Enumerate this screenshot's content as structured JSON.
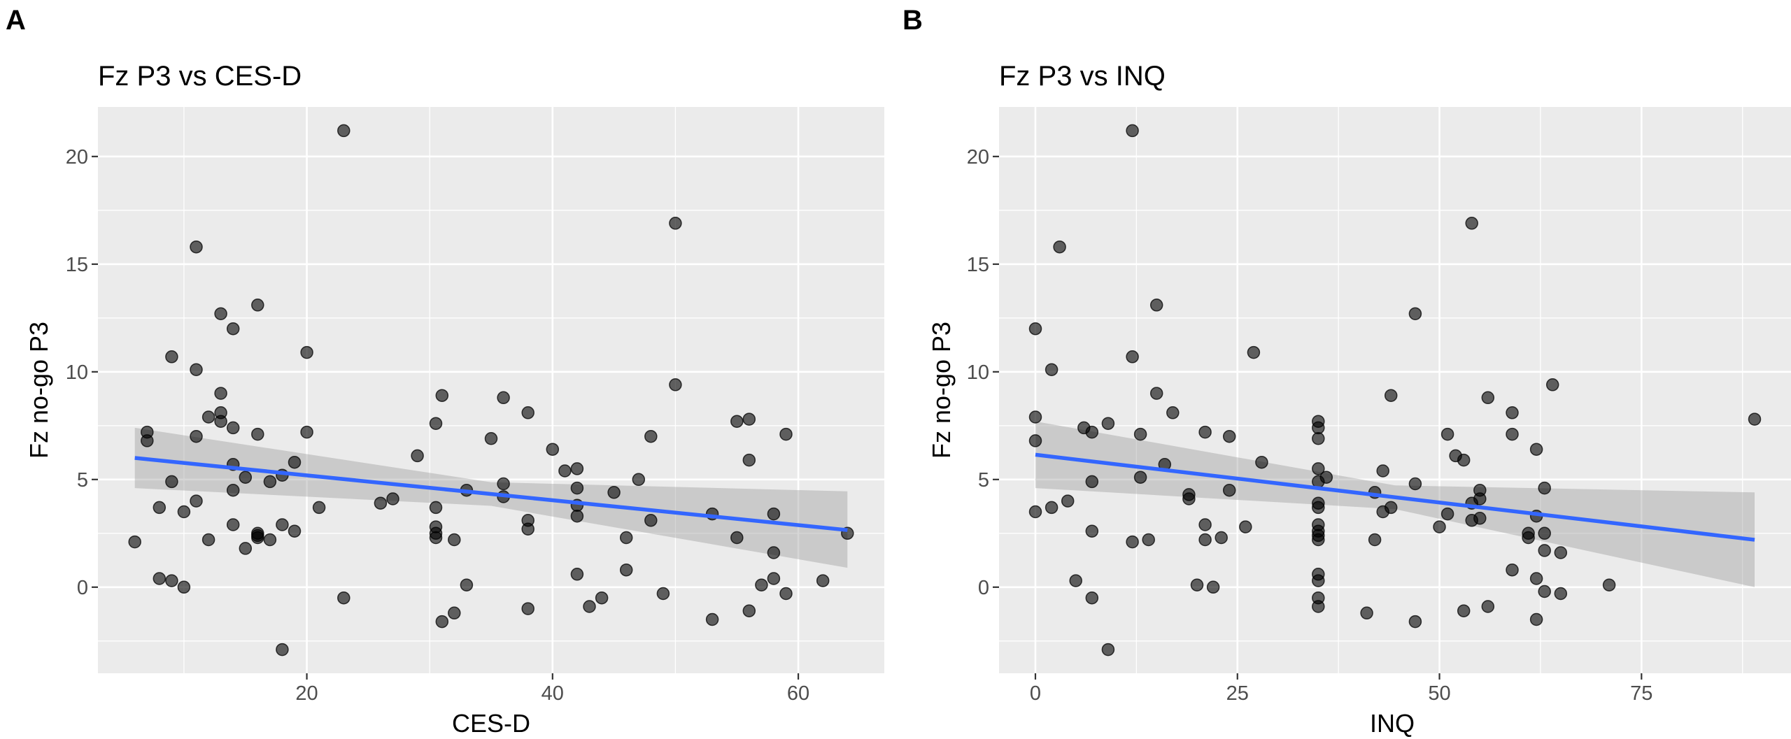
{
  "chart_data": [
    {
      "panel_label": "A",
      "type": "scatter",
      "title": "Fz P3 vs CES-D",
      "xlabel": "CES-D",
      "ylabel": "Fz no-go P3",
      "xlim": [
        3,
        67
      ],
      "ylim": [
        -4,
        22.3
      ],
      "x_ticks": [
        20,
        40,
        60
      ],
      "y_ticks": [
        0,
        5,
        10,
        15,
        20
      ],
      "fit": {
        "method": "lm",
        "x_start": 6,
        "x_end": 64,
        "y_start": 6.0,
        "y_end": 2.65,
        "ci_start": [
          4.6,
          7.4
        ],
        "ci_end": [
          0.9,
          4.45
        ]
      },
      "points": [
        [
          6,
          2.1
        ],
        [
          7,
          6.8
        ],
        [
          7,
          7.2
        ],
        [
          8,
          0.4
        ],
        [
          8,
          3.7
        ],
        [
          9,
          0.3
        ],
        [
          9,
          4.9
        ],
        [
          9,
          10.7
        ],
        [
          10,
          0
        ],
        [
          10,
          3.5
        ],
        [
          11,
          4
        ],
        [
          11,
          7
        ],
        [
          11,
          10.1
        ],
        [
          11,
          15.8
        ],
        [
          12,
          2.2
        ],
        [
          12,
          7.9
        ],
        [
          13,
          7.7
        ],
        [
          13,
          8.1
        ],
        [
          13,
          9
        ],
        [
          13,
          12.7
        ],
        [
          14,
          2.9
        ],
        [
          14,
          4.5
        ],
        [
          14,
          5.7
        ],
        [
          14,
          7.4
        ],
        [
          14,
          12
        ],
        [
          15,
          1.8
        ],
        [
          15,
          5.1
        ],
        [
          16,
          2.3
        ],
        [
          16,
          2.4
        ],
        [
          16,
          2.5
        ],
        [
          16,
          7.1
        ],
        [
          16,
          13.1
        ],
        [
          17,
          2.2
        ],
        [
          17,
          4.9
        ],
        [
          18,
          -2.9
        ],
        [
          18,
          2.9
        ],
        [
          18,
          5.2
        ],
        [
          19,
          2.6
        ],
        [
          19,
          5.8
        ],
        [
          20,
          7.2
        ],
        [
          20,
          10.9
        ],
        [
          21,
          3.7
        ],
        [
          23,
          -0.5
        ],
        [
          23,
          21.2
        ],
        [
          26,
          3.9
        ],
        [
          27,
          4.1
        ],
        [
          29,
          6.1
        ],
        [
          30.5,
          2.3
        ],
        [
          30.5,
          2.5
        ],
        [
          30.5,
          2.8
        ],
        [
          30.5,
          3.7
        ],
        [
          30.5,
          7.6
        ],
        [
          31,
          -1.6
        ],
        [
          31,
          8.9
        ],
        [
          32,
          -1.2
        ],
        [
          32,
          2.2
        ],
        [
          33,
          0.1
        ],
        [
          33,
          4.5
        ],
        [
          35,
          6.9
        ],
        [
          36,
          4.2
        ],
        [
          36,
          4.8
        ],
        [
          36,
          8.8
        ],
        [
          38,
          -1
        ],
        [
          38,
          2.7
        ],
        [
          38,
          3.1
        ],
        [
          38,
          8.1
        ],
        [
          40,
          6.4
        ],
        [
          41,
          5.4
        ],
        [
          42,
          0.6
        ],
        [
          42,
          3.3
        ],
        [
          42,
          3.8
        ],
        [
          42,
          4.6
        ],
        [
          42,
          5.5
        ],
        [
          43,
          -0.9
        ],
        [
          44,
          -0.5
        ],
        [
          45,
          4.4
        ],
        [
          46,
          0.8
        ],
        [
          46,
          2.3
        ],
        [
          47,
          5
        ],
        [
          48,
          3.1
        ],
        [
          48,
          7
        ],
        [
          49,
          -0.3
        ],
        [
          50,
          9.4
        ],
        [
          50,
          16.9
        ],
        [
          53,
          -1.5
        ],
        [
          53,
          3.4
        ],
        [
          55,
          2.3
        ],
        [
          55,
          7.7
        ],
        [
          56,
          -1.1
        ],
        [
          56,
          5.9
        ],
        [
          56,
          7.8
        ],
        [
          57,
          0.1
        ],
        [
          58,
          0.4
        ],
        [
          58,
          1.6
        ],
        [
          58,
          3.4
        ],
        [
          59,
          -0.3
        ],
        [
          59,
          7.1
        ],
        [
          62,
          0.3
        ],
        [
          64,
          2.5
        ]
      ]
    },
    {
      "panel_label": "B",
      "type": "scatter",
      "title": "Fz P3 vs INQ",
      "xlabel": "INQ",
      "ylabel": "Fz no-go P3",
      "xlim": [
        -4.5,
        93.5
      ],
      "ylim": [
        -4,
        22.3
      ],
      "x_ticks": [
        0,
        25,
        50,
        75
      ],
      "y_ticks": [
        0,
        5,
        10,
        15,
        20
      ],
      "fit": {
        "method": "lm",
        "x_start": 0,
        "x_end": 89,
        "y_start": 6.15,
        "y_end": 2.2,
        "ci_start": [
          4.6,
          7.7
        ],
        "ci_end": [
          0,
          4.4
        ]
      },
      "points": [
        [
          0,
          3.5
        ],
        [
          0,
          6.8
        ],
        [
          0,
          7.9
        ],
        [
          0,
          12
        ],
        [
          2,
          3.7
        ],
        [
          2,
          10.1
        ],
        [
          3,
          15.8
        ],
        [
          4,
          4
        ],
        [
          5,
          0.3
        ],
        [
          6,
          7.4
        ],
        [
          7,
          -0.5
        ],
        [
          7,
          2.6
        ],
        [
          7,
          4.9
        ],
        [
          7,
          7.2
        ],
        [
          9,
          -2.9
        ],
        [
          9,
          7.6
        ],
        [
          12,
          2.1
        ],
        [
          12,
          10.7
        ],
        [
          12,
          21.2
        ],
        [
          13,
          5.1
        ],
        [
          13,
          7.1
        ],
        [
          14,
          2.2
        ],
        [
          15,
          9
        ],
        [
          15,
          13.1
        ],
        [
          16,
          5.7
        ],
        [
          17,
          8.1
        ],
        [
          19,
          4.1
        ],
        [
          19,
          4.3
        ],
        [
          20,
          0.1
        ],
        [
          21,
          2.2
        ],
        [
          21,
          2.9
        ],
        [
          21,
          7.2
        ],
        [
          22,
          0
        ],
        [
          23,
          2.3
        ],
        [
          24,
          4.5
        ],
        [
          24,
          7
        ],
        [
          26,
          2.8
        ],
        [
          27,
          10.9
        ],
        [
          28,
          5.8
        ],
        [
          35,
          -0.9
        ],
        [
          35,
          -0.5
        ],
        [
          35,
          0.3
        ],
        [
          35,
          0.6
        ],
        [
          35,
          2.2
        ],
        [
          35,
          2.4
        ],
        [
          35,
          2.6
        ],
        [
          35,
          2.9
        ],
        [
          35,
          3.7
        ],
        [
          35,
          3.9
        ],
        [
          35,
          4.9
        ],
        [
          35,
          5.5
        ],
        [
          35,
          6.9
        ],
        [
          35,
          7.4
        ],
        [
          35,
          7.7
        ],
        [
          36,
          5.1
        ],
        [
          41,
          -1.2
        ],
        [
          42,
          2.2
        ],
        [
          42,
          4.4
        ],
        [
          43,
          3.5
        ],
        [
          43,
          5.4
        ],
        [
          44,
          3.7
        ],
        [
          44,
          8.9
        ],
        [
          47,
          -1.6
        ],
        [
          47,
          4.8
        ],
        [
          47,
          12.7
        ],
        [
          50,
          2.8
        ],
        [
          51,
          3.4
        ],
        [
          51,
          7.1
        ],
        [
          52,
          6.1
        ],
        [
          53,
          -1.1
        ],
        [
          53,
          5.9
        ],
        [
          54,
          3.1
        ],
        [
          54,
          3.9
        ],
        [
          54,
          16.9
        ],
        [
          55,
          3.2
        ],
        [
          55,
          4.1
        ],
        [
          55,
          4.5
        ],
        [
          56,
          -0.9
        ],
        [
          56,
          8.8
        ],
        [
          59,
          0.8
        ],
        [
          59,
          7.1
        ],
        [
          59,
          8.1
        ],
        [
          61,
          2.3
        ],
        [
          61,
          2.5
        ],
        [
          62,
          -1.5
        ],
        [
          62,
          0.4
        ],
        [
          62,
          3.3
        ],
        [
          62,
          6.4
        ],
        [
          63,
          -0.2
        ],
        [
          63,
          1.7
        ],
        [
          63,
          2.5
        ],
        [
          63,
          4.6
        ],
        [
          64,
          9.4
        ],
        [
          65,
          -0.3
        ],
        [
          65,
          1.6
        ],
        [
          71,
          0.1
        ],
        [
          89,
          7.8
        ]
      ]
    }
  ]
}
